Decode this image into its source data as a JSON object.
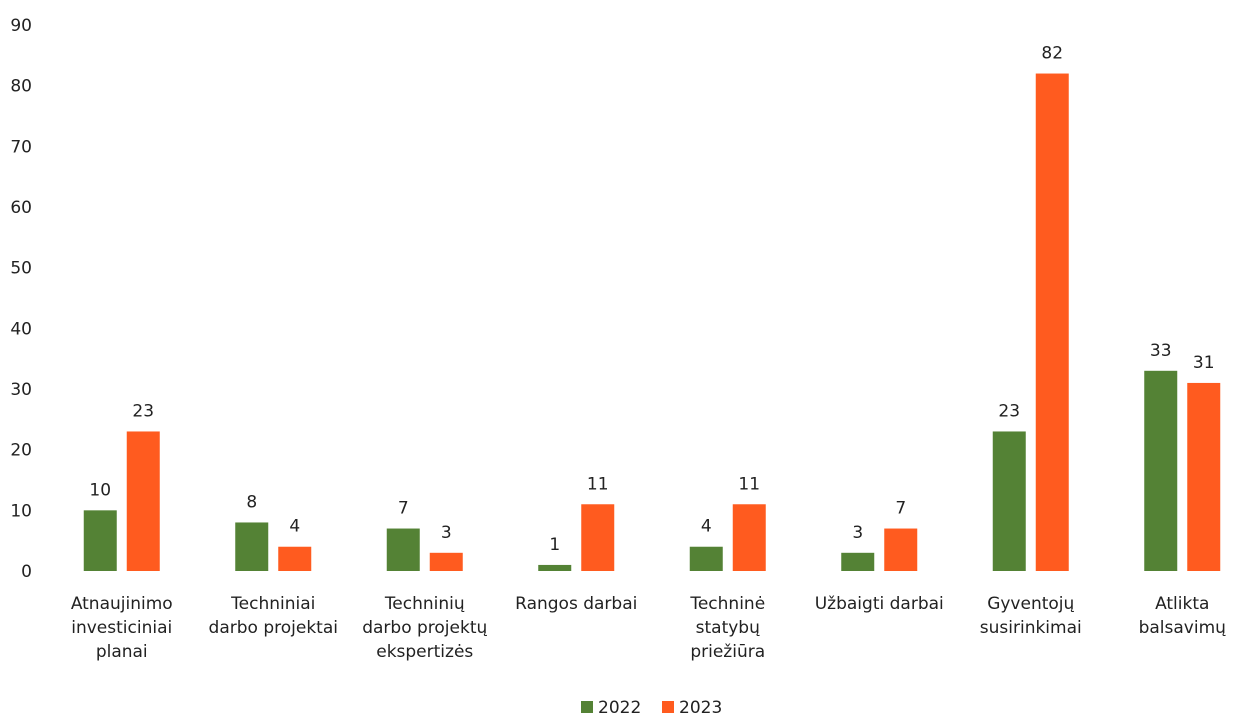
{
  "chart_data": {
    "type": "bar",
    "categories": [
      [
        "Atnaujinimo",
        "investiciniai",
        "planai"
      ],
      [
        "Techniniai",
        "darbo projektai"
      ],
      [
        "Techninių",
        "darbo projektų",
        "ekspertizės"
      ],
      [
        "Rangos darbai"
      ],
      [
        "Techninė",
        "statybų",
        "priežiūra"
      ],
      [
        "Užbaigti darbai"
      ],
      [
        "Gyventojų",
        "susirinkimai"
      ],
      [
        "Atlikta",
        "balsavimų"
      ]
    ],
    "series": [
      {
        "name": "2022",
        "color": "#548235",
        "values": [
          10,
          8,
          7,
          1,
          4,
          3,
          23,
          33
        ]
      },
      {
        "name": "2023",
        "color": "#ff5b1f",
        "values": [
          23,
          4,
          3,
          11,
          11,
          7,
          82,
          31
        ]
      }
    ],
    "yticks": [
      "0",
      "10",
      "20",
      "30",
      "40",
      "50",
      "60",
      "70",
      "80",
      "90"
    ],
    "ylim": [
      0,
      90
    ],
    "grid": false,
    "legend_position": "bottom"
  }
}
